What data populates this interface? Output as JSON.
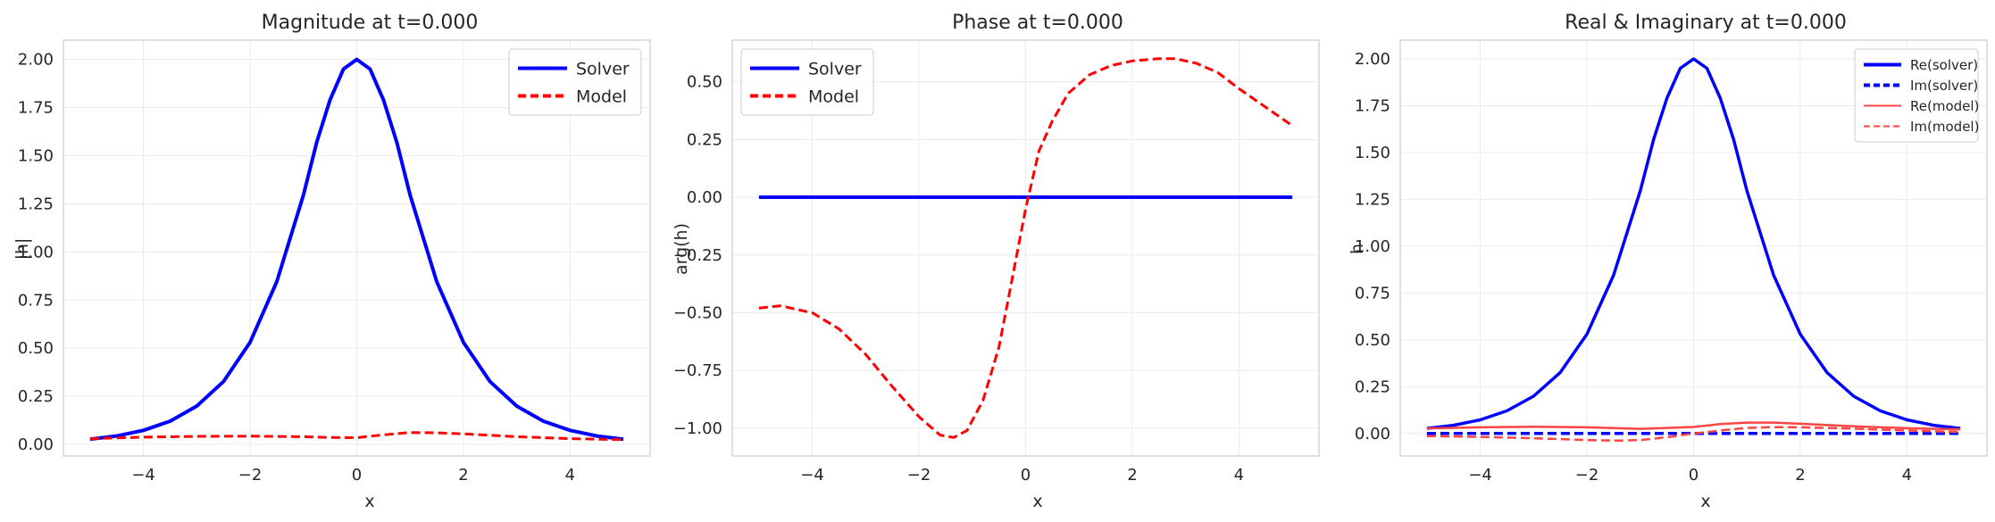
{
  "charts": [
    {
      "title": "Magnitude at t=0.000",
      "xlabel": "x",
      "ylabel": "|h|",
      "legend_font": 19,
      "xticks": [
        "−4",
        "−2",
        "0",
        "2",
        "4"
      ],
      "yticks": [
        "0.00",
        "0.25",
        "0.50",
        "0.75",
        "1.00",
        "1.25",
        "1.50",
        "1.75",
        "2.00"
      ],
      "legend": [
        {
          "label": "Solver",
          "color": "#0000ff",
          "dash": "solid"
        },
        {
          "label": "Model",
          "color": "#ff0000",
          "dash": "dashed"
        }
      ]
    },
    {
      "title": "Phase at t=0.000",
      "xlabel": "x",
      "ylabel": "arg(h)",
      "legend_font": 19,
      "xticks": [
        "−4",
        "−2",
        "0",
        "2",
        "4"
      ],
      "yticks": [
        "−1.00",
        "−0.75",
        "−0.50",
        "−0.25",
        "0.00",
        "0.25",
        "0.50"
      ],
      "legend": [
        {
          "label": "Solver",
          "color": "#0000ff",
          "dash": "solid"
        },
        {
          "label": "Model",
          "color": "#ff0000",
          "dash": "dashed"
        }
      ]
    },
    {
      "title": "Real & Imaginary at t=0.000",
      "xlabel": "x",
      "ylabel": "h",
      "legend_font": 15,
      "xticks": [
        "−4",
        "−2",
        "0",
        "2",
        "4"
      ],
      "yticks": [
        "0.00",
        "0.25",
        "0.50",
        "0.75",
        "1.00",
        "1.25",
        "1.50",
        "1.75",
        "2.00"
      ],
      "legend": [
        {
          "label": "Re(solver)",
          "color": "#0000ff",
          "dash": "solid"
        },
        {
          "label": "Im(solver)",
          "color": "#0000ff",
          "dash": "dashed"
        },
        {
          "label": "Re(model)",
          "color": "#ff4444",
          "dash": "solid"
        },
        {
          "label": "Im(model)",
          "color": "#ff4444",
          "dash": "dashed"
        }
      ]
    }
  ],
  "chart_data": [
    {
      "type": "line",
      "title": "Magnitude at t=0.000",
      "xlabel": "x",
      "ylabel": "|h|",
      "xlim": [
        -5.5,
        5.5
      ],
      "ylim": [
        -0.06,
        2.1
      ],
      "xticks": [
        -4,
        -2,
        0,
        2,
        4
      ],
      "yticks": [
        0,
        0.25,
        0.5,
        0.75,
        1.0,
        1.25,
        1.5,
        1.75,
        2.0
      ],
      "grid": true,
      "legend_position": "top-right",
      "series": [
        {
          "name": "Solver",
          "color": "#0000ff",
          "dash": "solid",
          "width": 4,
          "x": [
            -5,
            -4.5,
            -4,
            -3.5,
            -3,
            -2.5,
            -2,
            -1.5,
            -1,
            -0.75,
            -0.5,
            -0.25,
            0,
            0.25,
            0.5,
            0.75,
            1,
            1.5,
            2,
            2.5,
            3,
            3.5,
            4,
            4.5,
            5
          ],
          "y": [
            0.027,
            0.044,
            0.073,
            0.121,
            0.199,
            0.326,
            0.53,
            0.845,
            1.296,
            1.57,
            1.79,
            1.95,
            2.0,
            1.95,
            1.79,
            1.57,
            1.296,
            0.845,
            0.53,
            0.326,
            0.199,
            0.121,
            0.073,
            0.044,
            0.027
          ]
        },
        {
          "name": "Model",
          "color": "#ff0000",
          "dash": "dashed",
          "width": 3,
          "x": [
            -5,
            -4,
            -3,
            -2,
            -1,
            -0.5,
            0,
            0.5,
            1,
            1.5,
            2,
            3,
            4,
            5
          ],
          "y": [
            0.03,
            0.038,
            0.042,
            0.043,
            0.04,
            0.036,
            0.035,
            0.05,
            0.062,
            0.06,
            0.055,
            0.04,
            0.03,
            0.025
          ]
        }
      ]
    },
    {
      "type": "line",
      "title": "Phase at t=0.000",
      "xlabel": "x",
      "ylabel": "arg(h)",
      "xlim": [
        -5.5,
        5.5
      ],
      "ylim": [
        -1.12,
        0.68
      ],
      "xticks": [
        -4,
        -2,
        0,
        2,
        4
      ],
      "yticks": [
        -1.0,
        -0.75,
        -0.5,
        -0.25,
        0,
        0.25,
        0.5
      ],
      "grid": true,
      "legend_position": "top-left",
      "series": [
        {
          "name": "Solver",
          "color": "#0000ff",
          "dash": "solid",
          "width": 4,
          "x": [
            -5,
            5
          ],
          "y": [
            0,
            0
          ]
        },
        {
          "name": "Model",
          "color": "#ff0000",
          "dash": "dashed",
          "width": 3,
          "x": [
            -5,
            -4.6,
            -4,
            -3.5,
            -3,
            -2.5,
            -2,
            -1.6,
            -1.35,
            -1.1,
            -0.8,
            -0.5,
            -0.25,
            0,
            0.25,
            0.5,
            0.8,
            1.2,
            1.6,
            2,
            2.5,
            2.8,
            3.2,
            3.6,
            4,
            4.5,
            5
          ],
          "y": [
            -0.48,
            -0.47,
            -0.5,
            -0.57,
            -0.68,
            -0.82,
            -0.95,
            -1.03,
            -1.04,
            -1.01,
            -0.88,
            -0.65,
            -0.35,
            -0.05,
            0.2,
            0.33,
            0.45,
            0.53,
            0.57,
            0.59,
            0.6,
            0.6,
            0.58,
            0.54,
            0.47,
            0.39,
            0.31
          ]
        }
      ]
    },
    {
      "type": "line",
      "title": "Real & Imaginary at t=0.000",
      "xlabel": "x",
      "ylabel": "h",
      "xlim": [
        -5.5,
        5.5
      ],
      "ylim": [
        -0.12,
        2.1
      ],
      "xticks": [
        -4,
        -2,
        0,
        2,
        4
      ],
      "yticks": [
        0,
        0.25,
        0.5,
        0.75,
        1.0,
        1.25,
        1.5,
        1.75,
        2.0
      ],
      "grid": true,
      "legend_position": "top-right",
      "series": [
        {
          "name": "Re(solver)",
          "color": "#0000ff",
          "dash": "solid",
          "width": 3.5,
          "x": [
            -5,
            -4.5,
            -4,
            -3.5,
            -3,
            -2.5,
            -2,
            -1.5,
            -1,
            -0.75,
            -0.5,
            -0.25,
            0,
            0.25,
            0.5,
            0.75,
            1,
            1.5,
            2,
            2.5,
            3,
            3.5,
            4,
            4.5,
            5
          ],
          "y": [
            0.027,
            0.044,
            0.073,
            0.121,
            0.199,
            0.326,
            0.53,
            0.845,
            1.296,
            1.57,
            1.79,
            1.95,
            2.0,
            1.95,
            1.79,
            1.57,
            1.296,
            0.845,
            0.53,
            0.326,
            0.199,
            0.121,
            0.073,
            0.044,
            0.027
          ]
        },
        {
          "name": "Im(solver)",
          "color": "#0000ff",
          "dash": "dashed",
          "width": 3.5,
          "x": [
            -5,
            5
          ],
          "y": [
            0,
            0
          ]
        },
        {
          "name": "Re(model)",
          "color": "#ff4444",
          "dash": "solid",
          "width": 2.5,
          "x": [
            -5,
            -4,
            -3,
            -2,
            -1,
            0,
            0.5,
            1,
            1.5,
            2,
            3,
            4,
            5
          ],
          "y": [
            0.027,
            0.033,
            0.036,
            0.033,
            0.025,
            0.035,
            0.05,
            0.058,
            0.058,
            0.052,
            0.038,
            0.028,
            0.022
          ]
        },
        {
          "name": "Im(model)",
          "color": "#ff4444",
          "dash": "dashed",
          "width": 2.5,
          "x": [
            -5,
            -4,
            -3,
            -2,
            -1.4,
            -1,
            -0.5,
            0,
            0.5,
            1,
            1.5,
            2,
            3,
            4,
            5
          ],
          "y": [
            -0.014,
            -0.018,
            -0.025,
            -0.035,
            -0.038,
            -0.035,
            -0.02,
            0.0,
            0.016,
            0.03,
            0.034,
            0.033,
            0.026,
            0.016,
            0.008
          ]
        }
      ]
    }
  ]
}
